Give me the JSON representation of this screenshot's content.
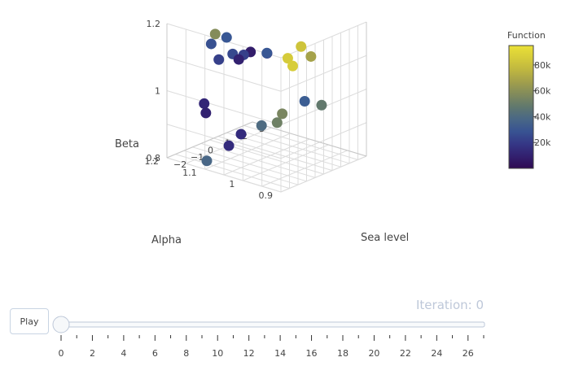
{
  "chart_data": {
    "type": "scatter3d",
    "axes": {
      "x": {
        "label": "Sea level",
        "ticks": [
          "−2",
          "−1",
          "0",
          "1",
          "2",
          "3"
        ]
      },
      "y": {
        "label": "Alpha",
        "ticks": [
          "0.9",
          "1",
          "1.1",
          "1.2"
        ]
      },
      "z": {
        "label": "Beta",
        "ticks": [
          "0.8",
          "1",
          "1.2"
        ]
      }
    },
    "colorbar": {
      "title": "Function",
      "ticks": [
        "20k",
        "40k",
        "60k",
        "80k"
      ],
      "range": [
        0,
        95000
      ],
      "colorscale": "viridis"
    },
    "points": [
      {
        "x": -0.6,
        "y": 0.91,
        "z": 1.2,
        "f": 82000
      },
      {
        "x": -1.6,
        "y": 0.9,
        "z": 1.19,
        "f": 85000
      },
      {
        "x": -1.7,
        "y": 0.95,
        "z": 1.19,
        "f": 12000
      },
      {
        "x": -2.0,
        "y": 0.98,
        "z": 1.19,
        "f": 8000
      },
      {
        "x": -2.4,
        "y": 0.98,
        "z": 1.19,
        "f": 22000
      },
      {
        "x": -2.6,
        "y": 1.0,
        "z": 1.19,
        "f": 25000
      },
      {
        "x": -2.3,
        "y": 1.07,
        "z": 1.19,
        "f": 28000
      },
      {
        "x": -1.4,
        "y": 1.07,
        "z": 1.19,
        "f": 30000
      },
      {
        "x": -1.4,
        "y": 1.1,
        "z": 1.19,
        "f": 58000
      },
      {
        "x": 0.2,
        "y": 0.92,
        "z": 1.15,
        "f": 68000
      },
      {
        "x": -0.2,
        "y": 0.95,
        "z": 1.12,
        "f": 86000
      },
      {
        "x": -0.6,
        "y": 1.0,
        "z": 1.15,
        "f": 30000
      },
      {
        "x": -1.8,
        "y": 1.02,
        "z": 1.15,
        "f": 10000
      },
      {
        "x": -2.3,
        "y": 1.05,
        "z": 1.15,
        "f": 22000
      },
      {
        "x": 0.6,
        "y": 0.91,
        "z": 1.0,
        "f": 48000
      },
      {
        "x": 0.5,
        "y": 0.95,
        "z": 1.0,
        "f": 33000
      },
      {
        "x": 0.3,
        "y": 1.0,
        "z": 0.95,
        "f": 55000
      },
      {
        "x": 0.0,
        "y": 1.0,
        "z": 0.93,
        "f": 52000
      },
      {
        "x": 0.2,
        "y": 1.05,
        "z": 0.9,
        "f": 40000
      },
      {
        "x": -1.0,
        "y": 1.05,
        "z": 0.9,
        "f": 14000
      },
      {
        "x": -1.6,
        "y": 1.12,
        "z": 0.98,
        "f": 12000
      },
      {
        "x": -1.5,
        "y": 1.12,
        "z": 0.95,
        "f": 10000
      },
      {
        "x": -0.6,
        "y": 1.1,
        "z": 0.84,
        "f": 14000
      },
      {
        "x": -1.0,
        "y": 1.14,
        "z": 0.79,
        "f": 38000
      }
    ]
  },
  "controls": {
    "play_label": "Play",
    "iteration_label": "Iteration: 0",
    "slider_ticks": [
      "0",
      "2",
      "4",
      "6",
      "8",
      "10",
      "12",
      "14",
      "16",
      "18",
      "20",
      "22",
      "24",
      "26"
    ],
    "slider_value": 0
  }
}
